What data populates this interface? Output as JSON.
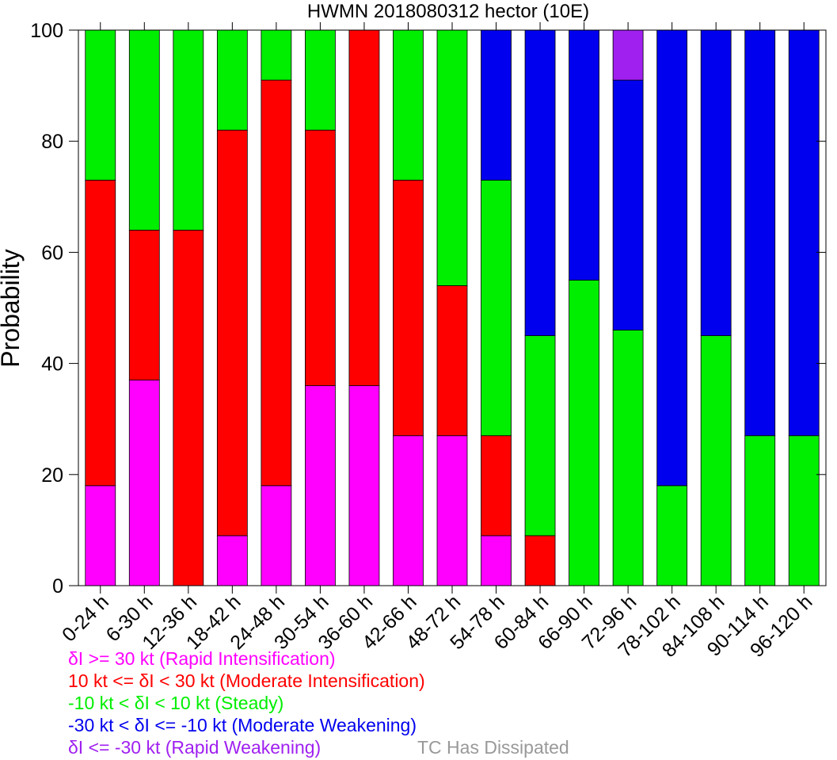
{
  "chart_data": {
    "type": "bar",
    "stacked": true,
    "title": "HWMN 2018080312 hector (10E)",
    "xlabel": "",
    "ylabel": "Probability",
    "ylim": [
      0,
      100
    ],
    "yticks": [
      0,
      20,
      40,
      60,
      80,
      100
    ],
    "ytick_labels": [
      "0",
      "20",
      "40",
      "60",
      "80",
      "100"
    ],
    "grid": false,
    "categories": [
      "0-24 h",
      "6-30 h",
      "12-36 h",
      "18-42 h",
      "24-48 h",
      "30-54 h",
      "36-60 h",
      "42-66 h",
      "48-72 h",
      "54-78 h",
      "60-84 h",
      "66-90 h",
      "72-96 h",
      "78-102 h",
      "84-108 h",
      "90-114 h",
      "96-120 h"
    ],
    "series": [
      {
        "name": "Rapid Intensification",
        "color": "#ff00ff",
        "values": [
          18,
          37,
          0,
          9,
          18,
          36,
          36,
          27,
          27,
          9,
          0,
          0,
          0,
          0,
          0,
          0,
          0
        ]
      },
      {
        "name": "Moderate Intensification",
        "color": "#ff0000",
        "values": [
          55,
          27,
          64,
          73,
          73,
          46,
          64,
          46,
          27,
          18,
          9,
          0,
          0,
          0,
          0,
          0,
          0
        ]
      },
      {
        "name": "Steady",
        "color": "#00ee00",
        "values": [
          27,
          36,
          36,
          18,
          9,
          18,
          0,
          27,
          46,
          46,
          36,
          55,
          46,
          18,
          45,
          27,
          27
        ]
      },
      {
        "name": "Moderate Weakening",
        "color": "#0000ee",
        "values": [
          0,
          0,
          0,
          0,
          0,
          0,
          0,
          0,
          0,
          27,
          55,
          45,
          45,
          82,
          55,
          73,
          73
        ]
      },
      {
        "name": "Rapid Weakening",
        "color": "#a020f0",
        "values": [
          0,
          0,
          0,
          0,
          0,
          0,
          0,
          0,
          0,
          0,
          0,
          0,
          9,
          0,
          0,
          0,
          0
        ]
      }
    ]
  },
  "legend": {
    "items": [
      {
        "text": "δI >= 30 kt (Rapid Intensification)",
        "color": "#ff00ff"
      },
      {
        "text": "10 kt <= δI < 30 kt (Moderate Intensification)",
        "color": "#ff0000"
      },
      {
        "text": "-10 kt < δI < 10 kt (Steady)",
        "color": "#00ee00"
      },
      {
        "text": "-30 kt < δI <= -10 kt (Moderate Weakening)",
        "color": "#0000ee"
      },
      {
        "text": "δI <= -30 kt (Rapid Weakening)",
        "color": "#a020f0"
      }
    ],
    "dissipated": {
      "text": "TC Has Dissipated",
      "color": "#999999"
    }
  }
}
